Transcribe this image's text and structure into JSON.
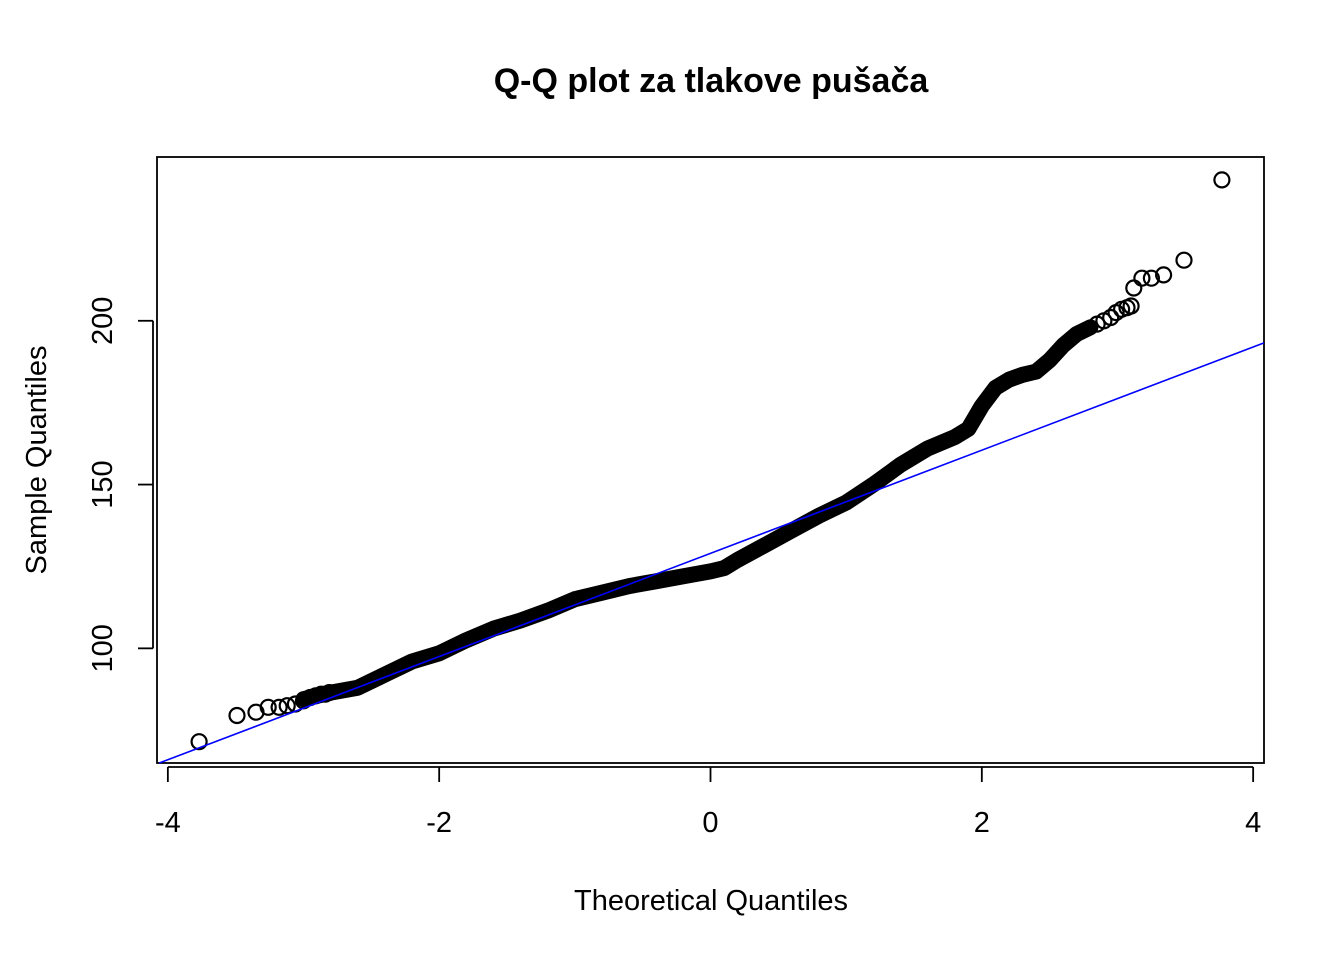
{
  "chart_data": {
    "type": "scatter",
    "title": "Q-Q plot za tlakove pušača",
    "xlabel": "Theoretical Quantiles",
    "ylabel": "Sample Quantiles",
    "xlim": [
      -4.08,
      4.08
    ],
    "ylim": [
      65,
      250
    ],
    "x_ticks": [
      -4,
      -2,
      0,
      2,
      4
    ],
    "x_tick_labels": [
      "-4",
      "-2",
      "0",
      "2",
      "4"
    ],
    "y_ticks": [
      100,
      150,
      200
    ],
    "y_tick_labels": [
      "100",
      "150",
      "200"
    ],
    "grid": false,
    "legend": "none",
    "colors": {
      "points": "#000000",
      "reference_line": "#0000ff"
    },
    "reference_line": {
      "points": [
        [
          -4,
          66
        ],
        [
          4,
          192
        ]
      ]
    },
    "quantile_curve": [
      [
        -3.0,
        84.5
      ],
      [
        -2.8,
        86.5
      ],
      [
        -2.6,
        88.0
      ],
      [
        -2.4,
        92.0
      ],
      [
        -2.2,
        96.0
      ],
      [
        -2.0,
        98.5
      ],
      [
        -1.8,
        102.5
      ],
      [
        -1.6,
        106.0
      ],
      [
        -1.4,
        108.5
      ],
      [
        -1.2,
        111.5
      ],
      [
        -1.0,
        115.0
      ],
      [
        -0.8,
        117.0
      ],
      [
        -0.6,
        119.0
      ],
      [
        -0.4,
        120.5
      ],
      [
        -0.2,
        122.0
      ],
      [
        0.0,
        123.5
      ],
      [
        0.1,
        124.5
      ],
      [
        0.2,
        127.0
      ],
      [
        0.4,
        131.5
      ],
      [
        0.6,
        136.0
      ],
      [
        0.8,
        140.5
      ],
      [
        1.0,
        144.5
      ],
      [
        1.2,
        150.0
      ],
      [
        1.4,
        156.0
      ],
      [
        1.6,
        161.0
      ],
      [
        1.8,
        164.5
      ],
      [
        1.9,
        167.0
      ],
      [
        2.0,
        174.0
      ],
      [
        2.1,
        179.5
      ],
      [
        2.2,
        182.0
      ],
      [
        2.3,
        183.5
      ],
      [
        2.4,
        184.5
      ],
      [
        2.5,
        188.0
      ],
      [
        2.6,
        192.5
      ],
      [
        2.7,
        196.0
      ],
      [
        2.8,
        198.0
      ]
    ],
    "points": [
      [
        -3.77,
        71.5
      ],
      [
        -3.49,
        79.5
      ],
      [
        -3.35,
        80.5
      ],
      [
        -3.26,
        82.0
      ],
      [
        -3.18,
        82.0
      ],
      [
        -3.12,
        82.5
      ],
      [
        -3.06,
        83.0
      ],
      [
        -3.0,
        84.0
      ],
      [
        -2.95,
        85.0
      ],
      [
        -2.91,
        85.5
      ],
      [
        -2.87,
        86.0
      ],
      [
        -2.84,
        86.0
      ],
      [
        -2.81,
        86.5
      ],
      [
        2.85,
        199.0
      ],
      [
        2.9,
        200.0
      ],
      [
        2.95,
        201.0
      ],
      [
        2.99,
        202.5
      ],
      [
        3.03,
        203.5
      ],
      [
        3.07,
        204.0
      ],
      [
        3.1,
        204.5
      ],
      [
        3.12,
        210.0
      ],
      [
        3.18,
        213.0
      ],
      [
        3.25,
        213.0
      ],
      [
        3.34,
        214.0
      ],
      [
        3.49,
        218.5
      ],
      [
        3.77,
        243.0
      ]
    ]
  }
}
